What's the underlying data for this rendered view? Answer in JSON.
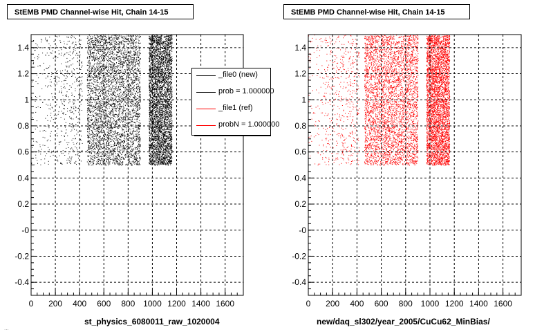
{
  "footer_text": "...",
  "chart_data": [
    {
      "type": "scatter",
      "title": "StEMB PMD Channel-wise Hit, Chain 14-15",
      "xlabel": "st_physics_6080011_raw_1020004",
      "ylabel": "",
      "xlim": [
        0,
        1750
      ],
      "ylim": [
        -0.5,
        1.5
      ],
      "xticks": [
        0,
        200,
        400,
        600,
        800,
        1000,
        1200,
        1400,
        1600
      ],
      "xtick_labels": [
        "0",
        "200",
        "400",
        "600",
        "800",
        "1000",
        "1200",
        "1400",
        "1600"
      ],
      "yticks": [
        -0.4,
        -0.2,
        0,
        0.2,
        0.4,
        0.6,
        0.8,
        1,
        1.2,
        1.4
      ],
      "ytick_labels": [
        "-0.4",
        "-0.2",
        "-0",
        "0.2",
        "0.4",
        "0.6",
        "0.8",
        "1",
        "1.2",
        "1.4"
      ],
      "grid": true,
      "color": "#000000",
      "density_bands": [
        {
          "x": [
            0,
            420
          ],
          "y": [
            0.5,
            1.5
          ],
          "density": "sparse"
        },
        {
          "x": [
            460,
            900
          ],
          "y": [
            0.5,
            1.5
          ],
          "density": "dense"
        },
        {
          "x": [
            970,
            1160
          ],
          "y": [
            0.5,
            1.5
          ],
          "density": "dense"
        }
      ],
      "legend": {
        "position": "top-right",
        "entries": [
          {
            "label": "_file0 (new)",
            "color": "#000000"
          },
          {
            "label": "prob = 1.000000",
            "color": "#000000"
          },
          {
            "label": "_file1 (ref)",
            "color": "#ff0000"
          },
          {
            "label": "probN = 1.000000",
            "color": "#ff0000"
          }
        ]
      }
    },
    {
      "type": "scatter",
      "title": "StEMB PMD Channel-wise Hit, Chain 14-15",
      "xlabel": "new/daq_sl302/year_2005/CuCu62_MinBias/",
      "ylabel": "",
      "xlim": [
        0,
        1750
      ],
      "ylim": [
        -0.5,
        1.5
      ],
      "xticks": [
        0,
        200,
        400,
        600,
        800,
        1000,
        1200,
        1400,
        1600
      ],
      "xtick_labels": [
        "0",
        "200",
        "400",
        "600",
        "800",
        "1000",
        "1200",
        "1400",
        "1600"
      ],
      "yticks": [
        -0.4,
        -0.2,
        0,
        0.2,
        0.4,
        0.6,
        0.8,
        1,
        1.2,
        1.4
      ],
      "ytick_labels": [
        "-0.4",
        "-0.2",
        "-0",
        "0.2",
        "0.4",
        "0.6",
        "0.8",
        "1",
        "1.2",
        "1.4"
      ],
      "grid": true,
      "color": "#ff0000",
      "density_bands": [
        {
          "x": [
            0,
            420
          ],
          "y": [
            0.5,
            1.5
          ],
          "density": "sparse"
        },
        {
          "x": [
            460,
            900
          ],
          "y": [
            0.5,
            1.5
          ],
          "density": "dense"
        },
        {
          "x": [
            970,
            1160
          ],
          "y": [
            0.5,
            1.5
          ],
          "density": "dense"
        }
      ]
    }
  ]
}
